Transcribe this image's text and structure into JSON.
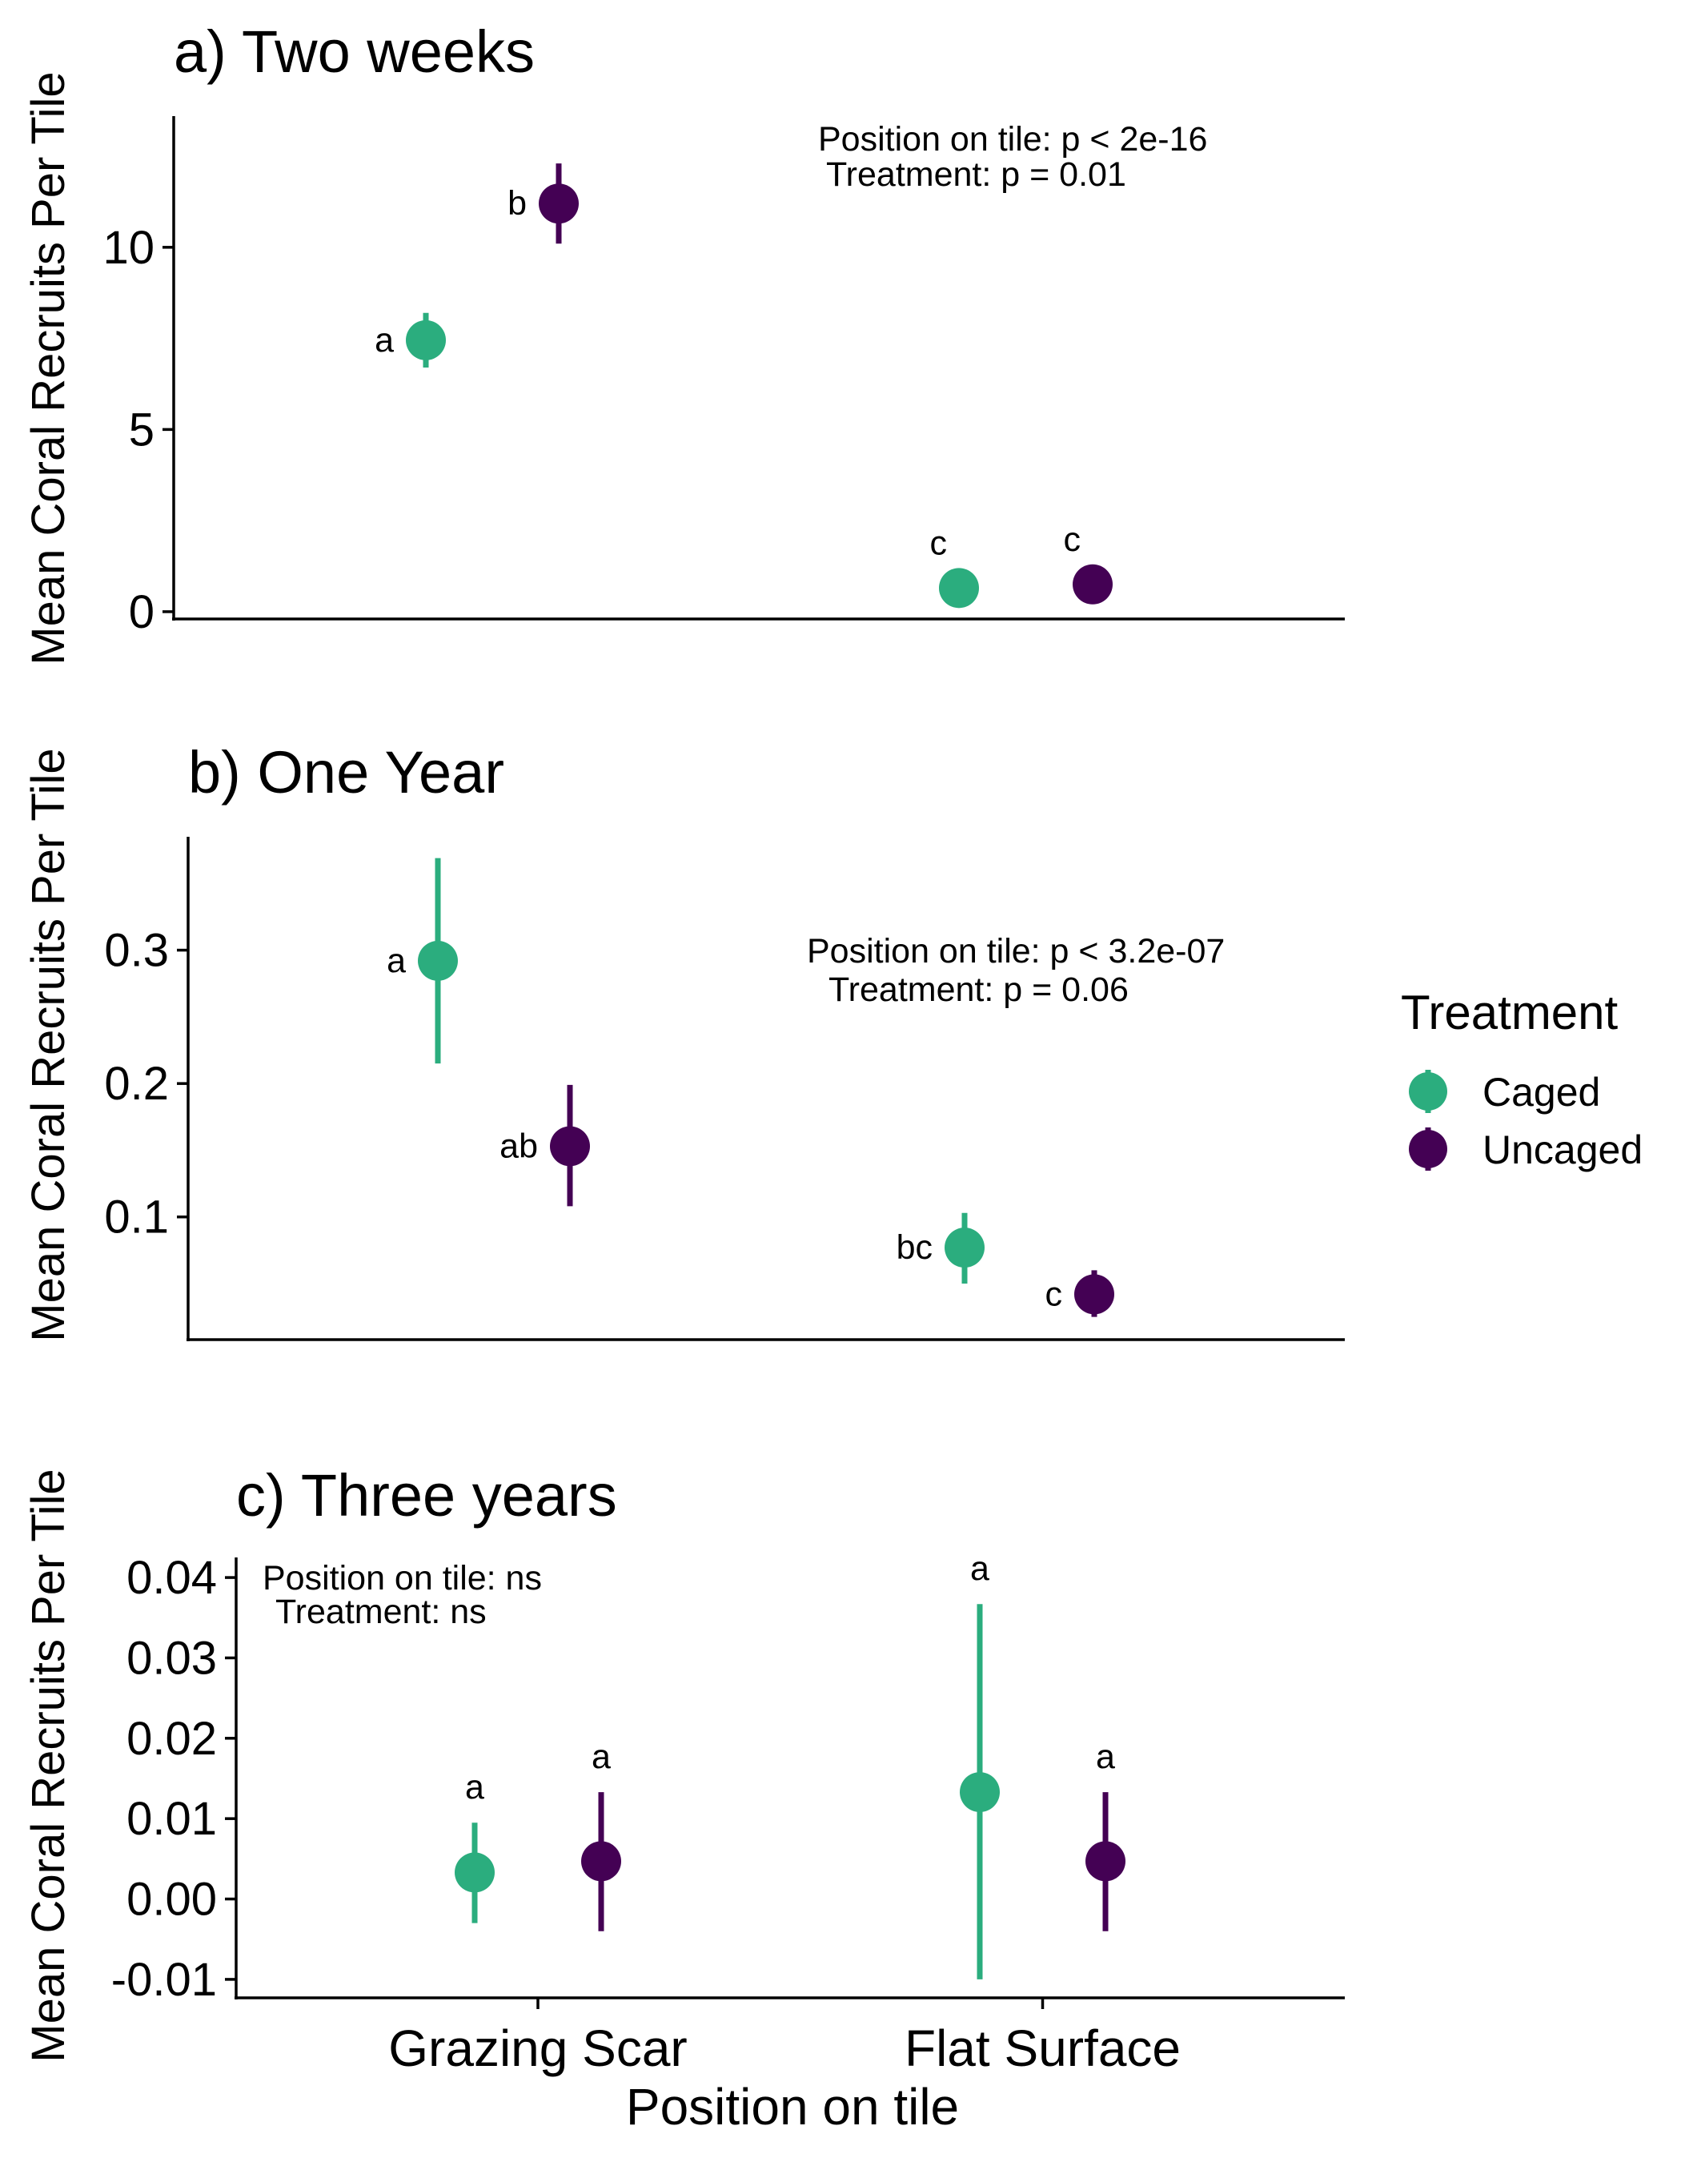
{
  "chart_data": [
    {
      "type": "scatter",
      "title": "a) Two weeks",
      "ylabel": "Mean Coral Recruits Per Tile",
      "xlabel": "",
      "categories": [
        "Grazing Scar",
        "Flat Surface"
      ],
      "ylim": [
        -0.2,
        13.6
      ],
      "yticks": [
        {
          "value": 0,
          "label": "0"
        },
        {
          "value": 5,
          "label": "5"
        },
        {
          "value": 10,
          "label": "10"
        }
      ],
      "series": [
        {
          "name": "Caged",
          "color": "#2bad7e",
          "values": [
            7.45,
            0.65
          ],
          "lower": [
            6.7,
            0.65
          ],
          "upper": [
            8.2,
            0.65
          ],
          "letters": [
            "a",
            "c"
          ]
        },
        {
          "name": "Uncaged",
          "color": "#440154",
          "values": [
            11.2,
            0.75
          ],
          "lower": [
            10.1,
            0.75
          ],
          "upper": [
            12.3,
            0.75
          ],
          "letters": [
            "b",
            "c"
          ]
        }
      ],
      "annotations": [
        "Position on tile: p < 2e-16",
        "Treatment: p = 0.01"
      ],
      "grid": false
    },
    {
      "type": "scatter",
      "title": "b) One Year",
      "ylabel": "Mean Coral Recruits Per Tile",
      "xlabel": "",
      "categories": [
        "Grazing Scar",
        "Flat Surface"
      ],
      "ylim": [
        0.008,
        0.385
      ],
      "yticks": [
        {
          "value": 0.1,
          "label": "0.1"
        },
        {
          "value": 0.2,
          "label": "0.2"
        },
        {
          "value": 0.3,
          "label": "0.3"
        }
      ],
      "series": [
        {
          "name": "Caged",
          "color": "#2bad7e",
          "values": [
            0.292,
            0.077
          ],
          "lower": [
            0.215,
            0.05
          ],
          "upper": [
            0.369,
            0.103
          ],
          "letters": [
            "a",
            "bc"
          ]
        },
        {
          "name": "Uncaged",
          "color": "#440154",
          "values": [
            0.153,
            0.042
          ],
          "lower": [
            0.108,
            0.025
          ],
          "upper": [
            0.199,
            0.06
          ],
          "letters": [
            "ab",
            "c"
          ]
        }
      ],
      "annotations": [
        "Position on tile: p < 3.2e-07",
        "Treatment: p = 0.06"
      ],
      "grid": false
    },
    {
      "type": "scatter",
      "title": "c) Three years",
      "ylabel": "Mean Coral Recruits Per Tile",
      "xlabel": "Position on tile",
      "categories": [
        "Grazing Scar",
        "Flat Surface"
      ],
      "ylim": [
        -0.0123,
        0.0425
      ],
      "yticks": [
        {
          "value": -0.01,
          "label": "-0.01"
        },
        {
          "value": 0.0,
          "label": "0.00"
        },
        {
          "value": 0.01,
          "label": "0.01"
        },
        {
          "value": 0.02,
          "label": "0.02"
        },
        {
          "value": 0.03,
          "label": "0.03"
        },
        {
          "value": 0.04,
          "label": "0.04"
        }
      ],
      "series": [
        {
          "name": "Caged",
          "color": "#2bad7e",
          "values": [
            0.0033,
            0.0133
          ],
          "lower": [
            -0.003,
            -0.01
          ],
          "upper": [
            0.0095,
            0.0367
          ],
          "letters": [
            "a",
            "a"
          ]
        },
        {
          "name": "Uncaged",
          "color": "#440154",
          "values": [
            0.0047,
            0.0047
          ],
          "lower": [
            -0.004,
            -0.004
          ],
          "upper": [
            0.0133,
            0.0133
          ],
          "letters": [
            "a",
            "a"
          ]
        }
      ],
      "annotations": [
        "Position on tile: ns",
        "Treatment: ns"
      ],
      "grid": false
    }
  ],
  "legend": {
    "title": "Treatment",
    "items": [
      {
        "label": "Caged",
        "color": "#2bad7e"
      },
      {
        "label": "Uncaged",
        "color": "#440154"
      }
    ]
  }
}
